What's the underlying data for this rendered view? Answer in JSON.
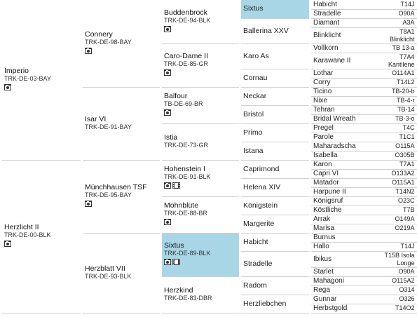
{
  "pedigree": {
    "gen1": [
      {
        "name": "Imperio",
        "reg": "TRK-DE-03-BAY",
        "photo": true
      },
      {
        "name": "Herzlicht II",
        "reg": "TRK-DE-00-BLK",
        "photo": true
      }
    ],
    "gen2": [
      {
        "name": "Connery",
        "reg": "TRK-DE-98-BAY",
        "photo": true
      },
      {
        "name": "Isar VI",
        "reg": "TRK-DE-91-BAY"
      },
      {
        "name": "Münchhausen TSF",
        "reg": "TRK-DE-95-BAY",
        "photo": true
      },
      {
        "name": "Herzblatt VII",
        "reg": "TRK-DE-93-BLK"
      }
    ],
    "gen3": [
      {
        "name": "Buddenbrock",
        "reg": "TRK-DE-94-BLK",
        "photo": true
      },
      {
        "name": "Caro-Dame II",
        "reg": "TRK-DE-85-GR",
        "photo": true
      },
      {
        "name": "Balfour",
        "reg": "TB-DE-69-BR",
        "photo": true
      },
      {
        "name": "Istia",
        "reg": "TRK-DE-73-GR"
      },
      {
        "name": "Hohenstein I",
        "reg": "TRK-DE-91-BLK",
        "photo": true,
        "video": true
      },
      {
        "name": "Mohnblüte",
        "reg": "TRK-DE-88-BR",
        "photo": true
      },
      {
        "name": "Sixtus",
        "reg": "TRK-DE-89-BLK",
        "photo": true,
        "video": true,
        "highlight": true
      },
      {
        "name": "Herzkind",
        "reg": "TRK-DE-83-DBR"
      }
    ],
    "gen4": [
      {
        "name": "Sixtus",
        "highlight": true
      },
      {
        "name": "Ballerina XXV"
      },
      {
        "name": "Karo As"
      },
      {
        "name": "Cornau"
      },
      {
        "name": "Neckar"
      },
      {
        "name": "Bristol"
      },
      {
        "name": "Primo"
      },
      {
        "name": "Istana"
      },
      {
        "name": "Caprimond"
      },
      {
        "name": "Helena XIV"
      },
      {
        "name": "Königstein"
      },
      {
        "name": "Margerite"
      },
      {
        "name": "Habicht"
      },
      {
        "name": "Stradelle"
      },
      {
        "name": "Radom"
      },
      {
        "name": "Herzliebchen"
      }
    ],
    "gen5": [
      {
        "name": "Habicht",
        "code": [
          "T14J"
        ]
      },
      {
        "name": "Stradelle",
        "code": [
          "O90A"
        ]
      },
      {
        "name": "Diamant",
        "code": [
          "A3A"
        ]
      },
      {
        "name": "Blinklicht",
        "code": [
          "T8A1",
          "Blinklicht"
        ]
      },
      {
        "name": "Vollkorn",
        "code": [
          "TB 13-a"
        ]
      },
      {
        "name": "Karawane II",
        "code": [
          "T7A4",
          "Kantilene"
        ]
      },
      {
        "name": "Lothar",
        "code": [
          "O114A1"
        ]
      },
      {
        "name": "Corry",
        "code": [
          "T14L2"
        ]
      },
      {
        "name": "Ticino",
        "code": [
          "TB-20-b"
        ]
      },
      {
        "name": "Nixe",
        "code": [
          "TB-4-r"
        ]
      },
      {
        "name": "Tehran",
        "code": [
          "TB-14"
        ]
      },
      {
        "name": "Bridal Wreath",
        "code": [
          "TB-3-o"
        ]
      },
      {
        "name": "Pregel",
        "code": [
          "T4C"
        ]
      },
      {
        "name": "Parole",
        "code": [
          "T1C1"
        ]
      },
      {
        "name": "Maharadscha",
        "code": [
          "O115A"
        ]
      },
      {
        "name": "Isabella",
        "code": [
          "O305B"
        ]
      },
      {
        "name": "Karon",
        "code": [
          "T7A1"
        ]
      },
      {
        "name": "Capri VI",
        "code": [
          "O133A2"
        ]
      },
      {
        "name": "Matador",
        "code": [
          "O115A1"
        ]
      },
      {
        "name": "Harpune II",
        "code": [
          "T14N2"
        ]
      },
      {
        "name": "Königsruf",
        "code": [
          "O23C"
        ]
      },
      {
        "name": "Köstliche",
        "code": [
          "T7B"
        ]
      },
      {
        "name": "Arrak",
        "code": [
          "O149A"
        ]
      },
      {
        "name": "Marisa",
        "code": [
          "O219A"
        ]
      },
      {
        "name": "Burnus",
        "code": []
      },
      {
        "name": "Hallo",
        "code": [
          "T14J"
        ]
      },
      {
        "name": "Ibikus",
        "code": [
          "T15B Isola",
          "Longe"
        ]
      },
      {
        "name": "Starlet",
        "code": [
          "O90A"
        ]
      },
      {
        "name": "Mahagoni",
        "code": [
          "O115A2"
        ]
      },
      {
        "name": "Rega",
        "code": [
          "O314"
        ]
      },
      {
        "name": "Gunnar",
        "code": [
          "O326"
        ]
      },
      {
        "name": "Herbstgold",
        "code": [
          "T14O2"
        ]
      }
    ]
  }
}
